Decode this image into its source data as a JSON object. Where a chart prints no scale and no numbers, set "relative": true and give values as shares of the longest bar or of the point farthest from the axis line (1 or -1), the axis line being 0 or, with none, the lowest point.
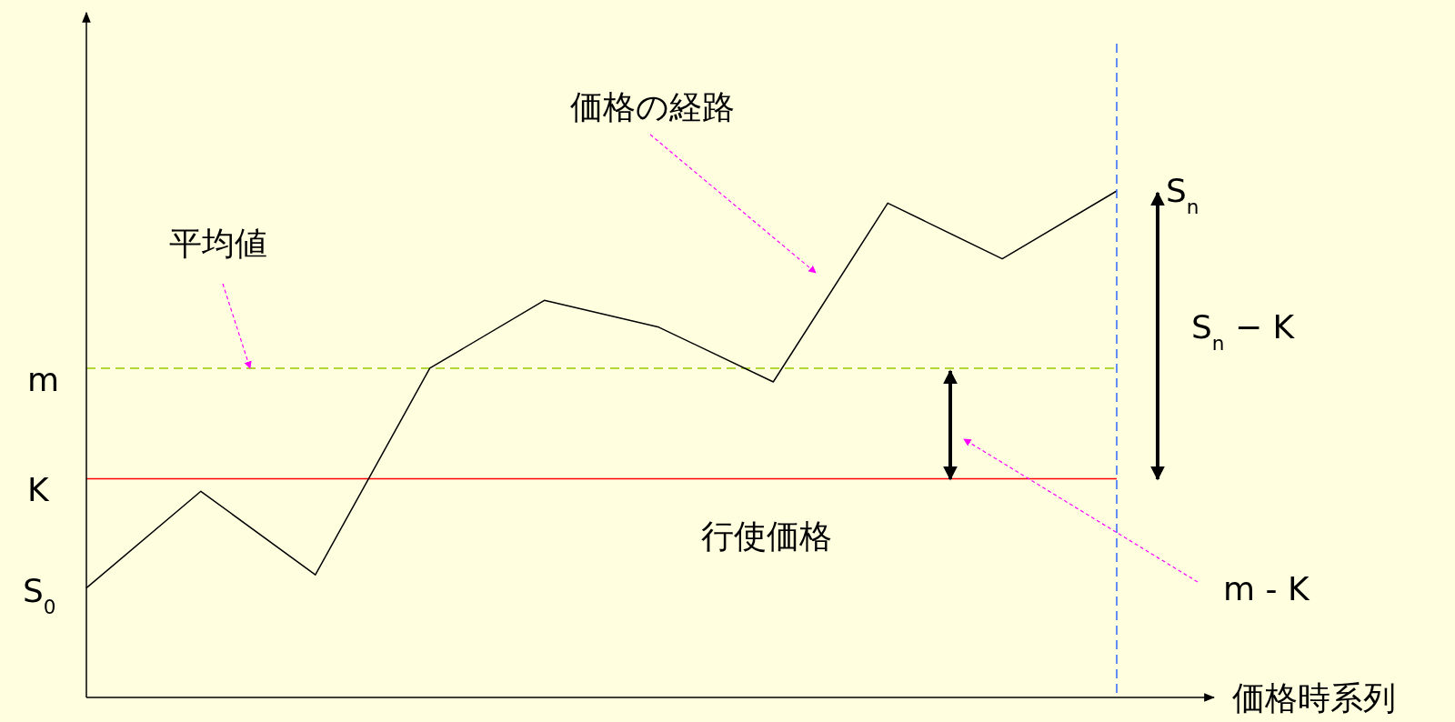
{
  "chart_data": {
    "type": "line",
    "relative": true,
    "xlabel": "価格時系列",
    "categories": [
      null,
      null,
      null,
      null,
      null,
      null,
      null,
      null,
      null,
      null
    ],
    "series": [
      {
        "color": "#000000",
        "values": [
          0.216,
          0.407,
          0.242,
          0.65,
          0.784,
          0.731,
          0.623,
          0.976,
          0.866,
          1
        ]
      }
    ],
    "ref_lines": [
      {
        "axis": "y",
        "value": 0.65,
        "label": "m",
        "color": "#99cc00",
        "line_style": "dashed"
      },
      {
        "axis": "y",
        "value": 0.432,
        "label": "K",
        "color": "#ff0000",
        "line_style": "solid"
      }
    ],
    "annotations": [
      "価格の経路",
      "平均値",
      "行使価格",
      "S$_{0}$",
      "S$_{n}$",
      "S$_{n}$ − K",
      "m - K"
    ]
  }
}
